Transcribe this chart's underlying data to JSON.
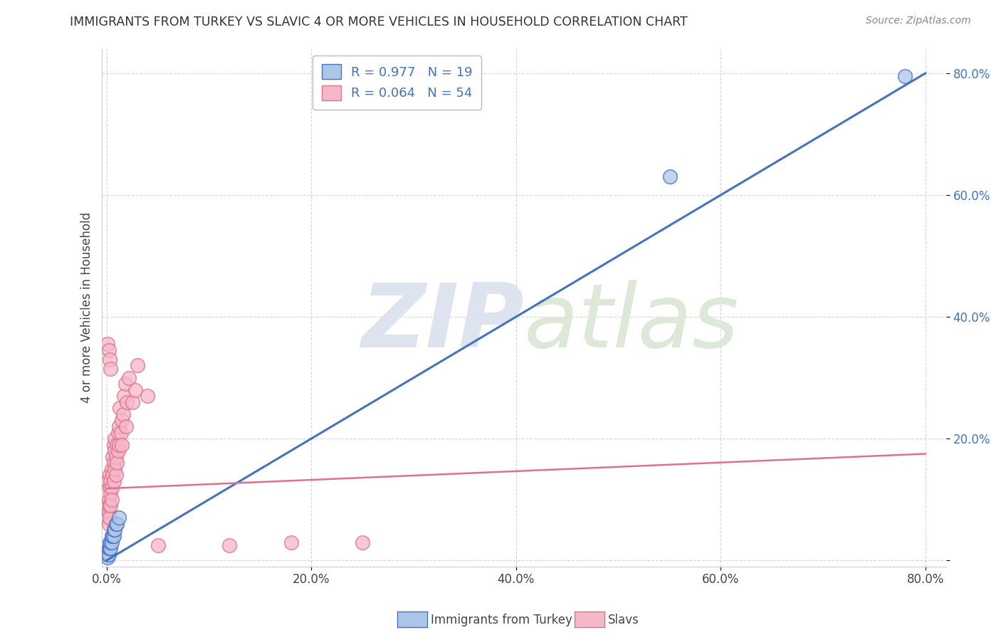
{
  "title": "IMMIGRANTS FROM TURKEY VS SLAVIC 4 OR MORE VEHICLES IN HOUSEHOLD CORRELATION CHART",
  "source": "Source: ZipAtlas.com",
  "ylabel": "4 or more Vehicles in Household",
  "x_label_blue": "Immigrants from Turkey",
  "x_label_pink": "Slavs",
  "R_blue": 0.977,
  "N_blue": 19,
  "R_pink": 0.064,
  "N_pink": 54,
  "xlim": [
    -0.005,
    0.82
  ],
  "ylim": [
    -0.01,
    0.84
  ],
  "xticks": [
    0.0,
    0.2,
    0.4,
    0.6,
    0.8
  ],
  "yticks": [
    0.0,
    0.2,
    0.4,
    0.6,
    0.8
  ],
  "xtick_labels": [
    "0.0%",
    "20.0%",
    "40.0%",
    "60.0%",
    "80.0%"
  ],
  "ytick_labels": [
    "",
    "20.0%",
    "40.0%",
    "60.0%",
    "80.0%"
  ],
  "background_color": "#ffffff",
  "plot_bg_color": "#ffffff",
  "grid_color": "#cccccc",
  "blue_scatter_color": "#adc6e8",
  "pink_scatter_color": "#f5b8c8",
  "blue_line_color": "#4472c4",
  "pink_line_color": "#e07090",
  "watermark_color": "#dde4ef",
  "blue_trend_x": [
    0.0,
    0.8
  ],
  "blue_trend_y": [
    0.0,
    0.8
  ],
  "pink_trend_x": [
    0.0,
    0.8
  ],
  "pink_trend_y": [
    0.118,
    0.175
  ],
  "blue_points_x": [
    0.001,
    0.001,
    0.002,
    0.002,
    0.003,
    0.003,
    0.004,
    0.004,
    0.005,
    0.005,
    0.006,
    0.007,
    0.007,
    0.008,
    0.009,
    0.01,
    0.012,
    0.55,
    0.78
  ],
  "blue_points_y": [
    0.005,
    0.01,
    0.01,
    0.02,
    0.02,
    0.03,
    0.02,
    0.03,
    0.03,
    0.04,
    0.04,
    0.04,
    0.05,
    0.05,
    0.06,
    0.06,
    0.07,
    0.63,
    0.795
  ],
  "pink_points_x": [
    0.001,
    0.001,
    0.001,
    0.002,
    0.002,
    0.002,
    0.003,
    0.003,
    0.003,
    0.003,
    0.004,
    0.004,
    0.004,
    0.005,
    0.005,
    0.005,
    0.006,
    0.006,
    0.007,
    0.007,
    0.007,
    0.008,
    0.008,
    0.008,
    0.009,
    0.009,
    0.01,
    0.01,
    0.011,
    0.011,
    0.012,
    0.012,
    0.013,
    0.014,
    0.015,
    0.015,
    0.016,
    0.017,
    0.018,
    0.019,
    0.02,
    0.022,
    0.025,
    0.028,
    0.03,
    0.04,
    0.05,
    0.12,
    0.18,
    0.25,
    0.001,
    0.002,
    0.003,
    0.004
  ],
  "pink_points_y": [
    0.13,
    0.09,
    0.07,
    0.1,
    0.08,
    0.06,
    0.12,
    0.09,
    0.07,
    0.14,
    0.11,
    0.09,
    0.13,
    0.15,
    0.12,
    0.1,
    0.17,
    0.14,
    0.19,
    0.16,
    0.13,
    0.18,
    0.15,
    0.2,
    0.17,
    0.14,
    0.16,
    0.19,
    0.18,
    0.21,
    0.22,
    0.19,
    0.25,
    0.21,
    0.23,
    0.19,
    0.24,
    0.27,
    0.29,
    0.22,
    0.26,
    0.3,
    0.26,
    0.28,
    0.32,
    0.27,
    0.025,
    0.025,
    0.03,
    0.03,
    0.355,
    0.345,
    0.33,
    0.315
  ]
}
